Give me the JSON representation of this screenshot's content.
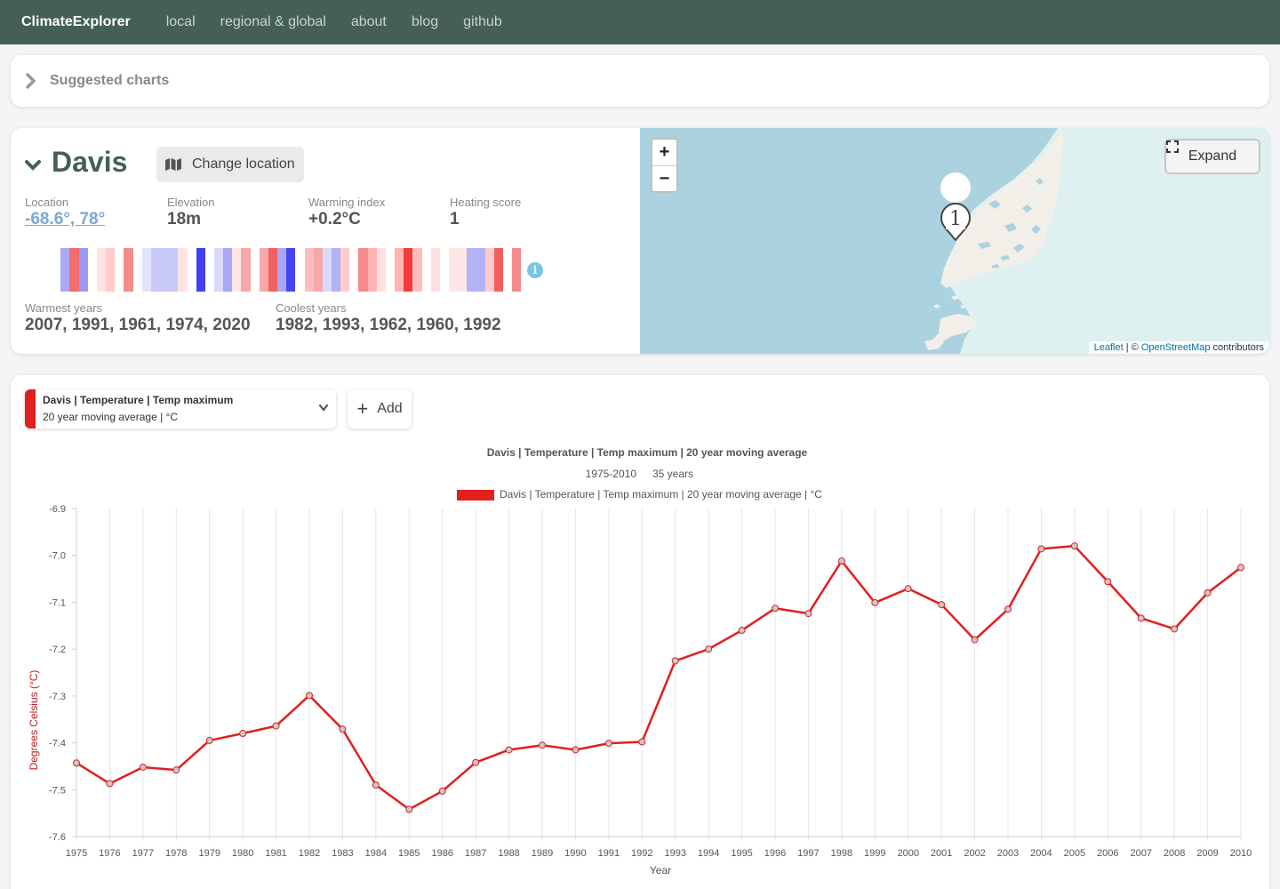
{
  "nav": {
    "brand": "ClimateExplorer",
    "links": [
      "local",
      "regional & global",
      "about",
      "blog",
      "github"
    ]
  },
  "suggested": {
    "label": "Suggested charts"
  },
  "location": {
    "name": "Davis",
    "change_label": "Change location",
    "stats": [
      {
        "label": "Location",
        "value": "-68.6°, 78°"
      },
      {
        "label": "Elevation",
        "value": "18m"
      },
      {
        "label": "Warming index",
        "value": "+0.2°C"
      },
      {
        "label": "Heating score",
        "value": "1"
      }
    ],
    "stripe_colors": [
      "#ffffff",
      "#ffffff",
      "#a9a9f5",
      "#f46d6d",
      "#9a9af2",
      "#ffffff",
      "#ffe3e3",
      "#ffcccc",
      "#ffffff",
      "#f48a8a",
      "#ffffff",
      "#e3e3fb",
      "#c9c9f8",
      "#c9c9f8",
      "#c9c9f8",
      "#ffe3e3",
      "#ffffff",
      "#4040f0",
      "#ffffff",
      "#dadafa",
      "#a8a8f5",
      "#ffe6e6",
      "#f7a8a8",
      "#ffffff",
      "#f7a8a8",
      "#f26060",
      "#a8a8f5",
      "#4545f2",
      "#ffffff",
      "#ffbdbd",
      "#f7a8a8",
      "#dadafa",
      "#b3b3f6",
      "#ffcccc",
      "#ffffff",
      "#f48a8a",
      "#ffb3b3",
      "#ffe0e0",
      "#ffffff",
      "#ffb3b3",
      "#f23c3c",
      "#ffbdbd",
      "#ffffff",
      "#ffe0e0",
      "#ffffff",
      "#ffe6e6",
      "#ffe6e6",
      "#b3b3f6",
      "#b3b3f6",
      "#ffcccc",
      "#f26060",
      "#ffffff",
      "#f48a8a"
    ],
    "info_icon": "info-icon",
    "warmest": {
      "label": "Warmest years",
      "value": "2007, 1991, 1961, 1974, 2020"
    },
    "coolest": {
      "label": "Coolest years",
      "value": "1982, 1993, 1962, 1960, 1992"
    }
  },
  "map": {
    "zoom_in": "+",
    "zoom_out": "−",
    "expand_label": "Expand",
    "marker_label": "1",
    "attribution": {
      "leaflet": "Leaflet",
      "sep": " | © ",
      "osm": "OpenStreetMap",
      "tail": " contributors"
    }
  },
  "series": {
    "title": "Davis | Temperature | Temp maximum",
    "subtitle": "20 year moving average | °C",
    "add_label": "Add",
    "color": "#e0201f"
  },
  "chart_data": {
    "type": "line",
    "title": "Davis | Temperature | Temp maximum | 20 year moving average",
    "subtitle_range": "1975-2010",
    "subtitle_span": "35 years",
    "legend": "Davis | Temperature | Temp maximum | 20 year moving average | °C",
    "xlabel": "Year",
    "ylabel": "Degrees Celsius (°C)",
    "ylim": [
      -7.6,
      -6.9
    ],
    "yticks": [
      "-6.9",
      "-7.0",
      "-7.1",
      "-7.2",
      "-7.3",
      "-7.4",
      "-7.5",
      "-7.6"
    ],
    "grid": true,
    "x": [
      "1975",
      "1976",
      "1977",
      "1978",
      "1979",
      "1980",
      "1981",
      "1982",
      "1983",
      "1984",
      "1985",
      "1986",
      "1987",
      "1988",
      "1989",
      "1990",
      "1991",
      "1992",
      "1993",
      "1994",
      "1995",
      "1996",
      "1997",
      "1998",
      "1999",
      "2000",
      "2001",
      "2002",
      "2003",
      "2004",
      "2005",
      "2006",
      "2007",
      "2008",
      "2009",
      "2010"
    ],
    "series": [
      {
        "color": "#e0201f",
        "values": [
          -7.443,
          -7.487,
          -7.452,
          -7.458,
          -7.395,
          -7.38,
          -7.364,
          -7.299,
          -7.371,
          -7.49,
          -7.542,
          -7.503,
          -7.442,
          -7.415,
          -7.405,
          -7.415,
          -7.401,
          -7.398,
          -7.225,
          -7.2,
          -7.16,
          -7.113,
          -7.124,
          -7.012,
          -7.101,
          -7.071,
          -7.105,
          -7.18,
          -7.115,
          -6.986,
          -6.98,
          -7.056,
          -7.134,
          -7.157,
          -7.08,
          -7.026
        ]
      }
    ]
  }
}
